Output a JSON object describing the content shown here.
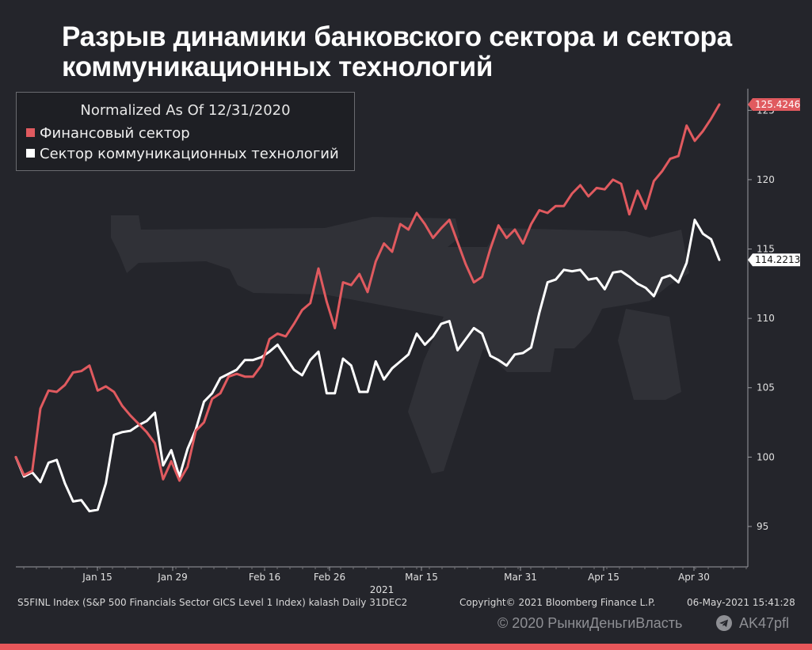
{
  "title": "Разрыв динамики банковского сектора и сектора коммуникационных технологий",
  "legend": {
    "title": "Normalized As Of 12/31/2020",
    "items": [
      {
        "label": "Финансовый сектор",
        "color": "#e05a5f"
      },
      {
        "label": "Сектор коммуникационных технологий",
        "color": "#ffffff"
      }
    ]
  },
  "chart_data": {
    "type": "line",
    "title": "Normalized As Of 12/31/2020",
    "x_ticks": [
      "Jan 15",
      "Jan 29",
      "Feb 16",
      "Feb 26",
      "Mar 15",
      "Mar 31",
      "Apr 15",
      "Apr 30"
    ],
    "x_year_label": "2021",
    "ylim": [
      93,
      128.5
    ],
    "y_ticks": [
      95,
      100,
      105,
      110,
      115,
      120,
      125
    ],
    "grid": false,
    "legend_position": "top-left",
    "series": [
      {
        "name": "Финансовый сектор",
        "color": "#e05a5f",
        "last_value_label": "125.4246",
        "values": [
          100.0,
          98.7,
          99.0,
          103.5,
          104.8,
          104.7,
          105.2,
          106.1,
          106.2,
          106.6,
          104.8,
          105.1,
          104.7,
          103.7,
          103.0,
          102.4,
          101.8,
          101.0,
          98.4,
          99.7,
          98.3,
          99.3,
          101.9,
          102.5,
          104.2,
          104.6,
          105.8,
          106.0,
          105.8,
          105.8,
          106.6,
          108.5,
          108.9,
          108.7,
          109.6,
          110.6,
          111.1,
          113.6,
          111.2,
          109.3,
          112.6,
          112.4,
          113.2,
          111.9,
          114.1,
          115.4,
          114.8,
          116.8,
          116.4,
          117.6,
          116.8,
          115.8,
          116.5,
          117.1,
          115.5,
          113.9,
          112.6,
          113.0,
          115.0,
          116.7,
          115.8,
          116.4,
          115.4,
          116.8,
          117.8,
          117.6,
          118.1,
          118.1,
          119.0,
          119.6,
          118.8,
          119.4,
          119.3,
          120.0,
          119.7,
          117.5,
          119.2,
          117.9,
          119.9,
          120.6,
          121.5,
          121.7,
          123.9,
          122.8,
          123.5,
          124.4,
          125.42
        ]
      },
      {
        "name": "Сектор коммуникационных технологий",
        "color": "#ffffff",
        "last_value_label": "114.2213",
        "values": [
          100.0,
          98.6,
          98.9,
          98.2,
          99.6,
          99.8,
          98.1,
          96.8,
          96.9,
          96.1,
          96.2,
          98.1,
          101.6,
          101.8,
          101.9,
          102.3,
          102.6,
          103.2,
          99.4,
          100.5,
          98.6,
          100.6,
          102.0,
          104.0,
          104.6,
          105.7,
          106.0,
          106.3,
          107.0,
          107.0,
          107.2,
          107.6,
          108.1,
          107.2,
          106.3,
          105.9,
          107.0,
          107.6,
          104.6,
          104.6,
          107.1,
          106.6,
          104.7,
          104.7,
          106.9,
          105.6,
          106.4,
          106.9,
          107.4,
          108.9,
          108.1,
          108.7,
          109.6,
          109.8,
          107.7,
          108.5,
          109.3,
          108.9,
          107.3,
          107.0,
          106.6,
          107.4,
          107.5,
          107.9,
          110.4,
          112.6,
          112.8,
          113.5,
          113.4,
          113.5,
          112.8,
          112.9,
          112.1,
          113.3,
          113.4,
          113.0,
          112.5,
          112.2,
          111.6,
          112.9,
          113.1,
          112.6,
          114.0,
          117.1,
          116.1,
          115.7,
          114.22
        ]
      }
    ]
  },
  "footer": {
    "index_info": "S5FINL Index (S&P 500 Financials Sector GICS Level 1 Index) kalash  Daily 31DEC2",
    "copyright": "Copyright© 2021 Bloomberg Finance L.P.",
    "datetime": "06-May-2021 15:41:28"
  },
  "watermark": {
    "left": "© 2020  РынкиДеньгиВласть",
    "right": "AK47pfl"
  },
  "colors": {
    "background": "#24252b",
    "financial": "#e05a5f",
    "tech": "#ffffff",
    "accent_bar": "#e8575a"
  }
}
